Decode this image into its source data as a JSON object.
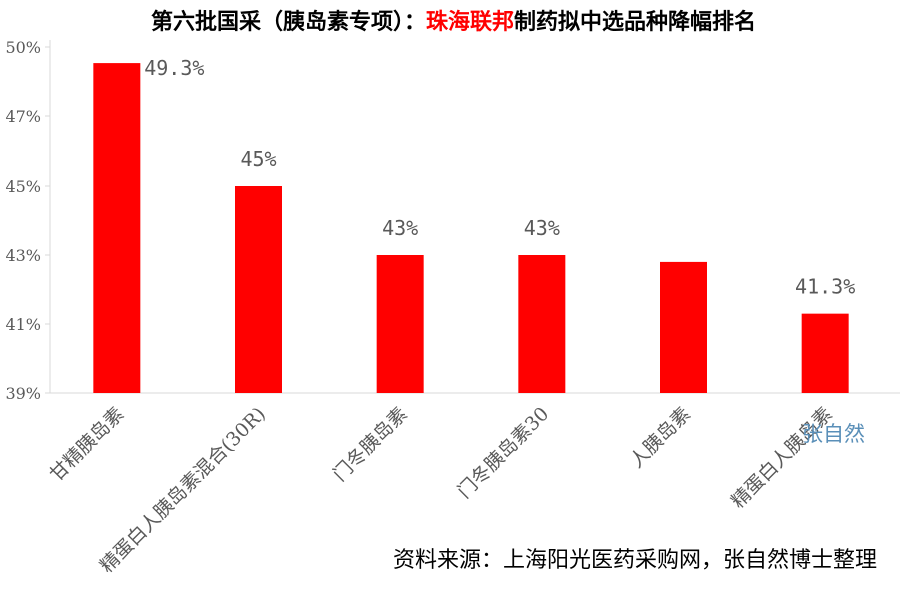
{
  "title": {
    "prefix": "第六批国采（胰岛素专项）：",
    "highlight": "珠海联邦",
    "suffix": "制药拟中选品种降幅排名"
  },
  "colors": {
    "bar": "#ff0000",
    "highlight": "#ff0000",
    "axis": "#d9d9d9",
    "watermark": "#5a8fb8"
  },
  "source": "资料来源：上海阳光医药采购网，张自然博士整理",
  "watermark": "张自然",
  "chart_data": {
    "type": "bar",
    "categories": [
      "甘精胰岛素",
      "精蛋白人胰岛素混合(30R)",
      "门冬胰岛素",
      "门冬胰岛素30",
      "人胰岛素",
      "精蛋白人胰岛素"
    ],
    "values": [
      49.3,
      45.0,
      43.0,
      43.0,
      42.8,
      41.3
    ],
    "data_labels": [
      "49.3%",
      "45%",
      "43%",
      "43%",
      "",
      "41.3%"
    ],
    "y_ticks": [
      "39%",
      "41%",
      "43%",
      "45%",
      "47%",
      "50%"
    ],
    "ylim": [
      39,
      50
    ],
    "grid": false,
    "legend": "none"
  }
}
